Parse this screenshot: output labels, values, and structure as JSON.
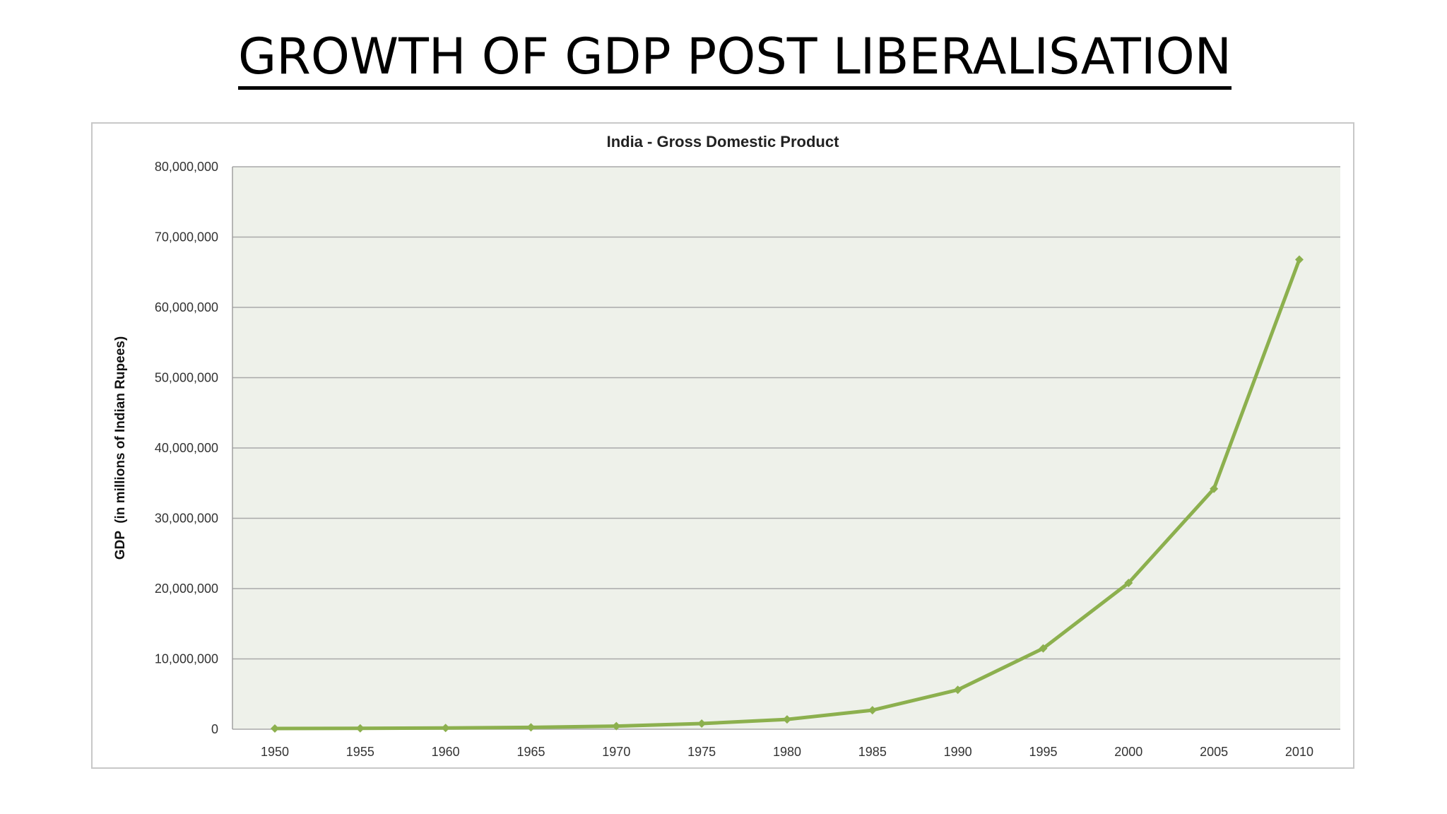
{
  "slide": {
    "title": "GROWTH OF GDP POST LIBERALISATION"
  },
  "colors": {
    "line": "#8cb04e",
    "plot_background": "#eef1ea",
    "gridline": "#a9a9a9",
    "frame_border": "#c8c8c8"
  },
  "chart_data": {
    "type": "line",
    "title": "India - Gross Domestic Product",
    "xlabel": "",
    "ylabel": "GDP  (in millions of Indian Rupees)",
    "ylim": [
      0,
      80000000
    ],
    "yticks": [
      0,
      10000000,
      20000000,
      30000000,
      40000000,
      50000000,
      60000000,
      70000000,
      80000000
    ],
    "ytick_labels": [
      "0",
      "10,000,000",
      "20,000,000",
      "30,000,000",
      "40,000,000",
      "50,000,000",
      "60,000,000",
      "70,000,000",
      "80,000,000"
    ],
    "grid": true,
    "legend": "none",
    "categories": [
      "1950",
      "1955",
      "1960",
      "1965",
      "1970",
      "1975",
      "1980",
      "1985",
      "1990",
      "1995",
      "2000",
      "2005",
      "2010"
    ],
    "series": [
      {
        "values": [
          100000,
          120000,
          170000,
          260000,
          440000,
          800000,
          1400000,
          2700000,
          5600000,
          11500000,
          20800000,
          34200000,
          66800000
        ]
      }
    ]
  }
}
